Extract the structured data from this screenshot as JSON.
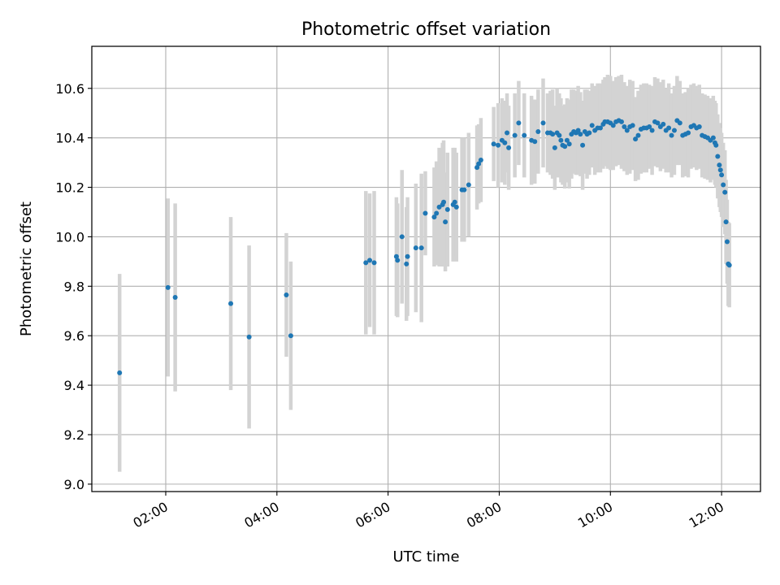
{
  "chart_data": {
    "type": "scatter",
    "title": "Photometric offset variation",
    "xlabel": "UTC time",
    "ylabel": "Photometric offset",
    "x_unit": "hours UTC",
    "xlim": [
      0.67,
      12.7
    ],
    "ylim": [
      8.97,
      10.77
    ],
    "x_ticks": [
      2,
      4,
      6,
      8,
      10,
      12
    ],
    "x_tick_labels": [
      "02:00",
      "04:00",
      "06:00",
      "08:00",
      "10:00",
      "12:00"
    ],
    "y_ticks": [
      9.0,
      9.2,
      9.4,
      9.6,
      9.8,
      10.0,
      10.2,
      10.4,
      10.6
    ],
    "y_tick_labels": [
      "9.0",
      "9.2",
      "9.4",
      "9.6",
      "9.8",
      "10.0",
      "10.2",
      "10.4",
      "10.6"
    ],
    "grid": true,
    "legend": "none",
    "colors": {
      "point": "#1f77b4",
      "errorbar": "#d3d3d3",
      "grid": "#b0b0b0"
    },
    "series": [
      {
        "values": [
          [
            1.17,
            9.45,
            0.4
          ],
          [
            2.04,
            9.795,
            0.36
          ],
          [
            2.17,
            9.755,
            0.38
          ],
          [
            3.17,
            9.73,
            0.35
          ],
          [
            3.5,
            9.595,
            0.37
          ],
          [
            4.17,
            9.765,
            0.25
          ],
          [
            4.25,
            9.6,
            0.3
          ],
          [
            5.6,
            9.895,
            0.29
          ],
          [
            5.67,
            9.905,
            0.27
          ],
          [
            5.75,
            9.895,
            0.29
          ],
          [
            6.15,
            9.92,
            0.24
          ],
          [
            6.17,
            9.905,
            0.23
          ],
          [
            6.25,
            10.0,
            0.27
          ],
          [
            6.33,
            9.89,
            0.23
          ],
          [
            6.35,
            9.92,
            0.24
          ],
          [
            6.5,
            9.955,
            0.26
          ],
          [
            6.6,
            9.955,
            0.3
          ],
          [
            6.67,
            10.095,
            0.17
          ],
          [
            6.83,
            10.08,
            0.2
          ],
          [
            6.87,
            10.095,
            0.21
          ],
          [
            6.92,
            10.12,
            0.24
          ],
          [
            6.98,
            10.13,
            0.25
          ],
          [
            7.0,
            10.14,
            0.25
          ],
          [
            7.03,
            10.06,
            0.2
          ],
          [
            7.07,
            10.11,
            0.23
          ],
          [
            7.17,
            10.13,
            0.23
          ],
          [
            7.2,
            10.14,
            0.22
          ],
          [
            7.23,
            10.12,
            0.22
          ],
          [
            7.33,
            10.19,
            0.21
          ],
          [
            7.37,
            10.19,
            0.21
          ],
          [
            7.45,
            10.21,
            0.21
          ],
          [
            7.6,
            10.28,
            0.17
          ],
          [
            7.63,
            10.295,
            0.16
          ],
          [
            7.67,
            10.31,
            0.17
          ],
          [
            7.9,
            10.375,
            0.15
          ],
          [
            7.98,
            10.37,
            0.17
          ],
          [
            8.05,
            10.39,
            0.17
          ],
          [
            8.1,
            10.38,
            0.17
          ],
          [
            8.14,
            10.42,
            0.16
          ],
          [
            8.17,
            10.36,
            0.17
          ],
          [
            8.28,
            10.41,
            0.17
          ],
          [
            8.35,
            10.46,
            0.17
          ],
          [
            8.45,
            10.41,
            0.17
          ],
          [
            8.58,
            10.39,
            0.18
          ],
          [
            8.64,
            10.385,
            0.17
          ],
          [
            8.7,
            10.425,
            0.17
          ],
          [
            8.79,
            10.46,
            0.18
          ],
          [
            8.87,
            10.42,
            0.16
          ],
          [
            8.92,
            10.42,
            0.17
          ],
          [
            8.96,
            10.415,
            0.18
          ],
          [
            9.0,
            10.36,
            0.17
          ],
          [
            9.04,
            10.42,
            0.18
          ],
          [
            9.08,
            10.41,
            0.17
          ],
          [
            9.11,
            10.39,
            0.17
          ],
          [
            9.14,
            10.37,
            0.16
          ],
          [
            9.18,
            10.365,
            0.17
          ],
          [
            9.22,
            10.39,
            0.17
          ],
          [
            9.26,
            10.375,
            0.18
          ],
          [
            9.3,
            10.415,
            0.18
          ],
          [
            9.34,
            10.425,
            0.17
          ],
          [
            9.38,
            10.42,
            0.17
          ],
          [
            9.42,
            10.43,
            0.18
          ],
          [
            9.46,
            10.415,
            0.17
          ],
          [
            9.5,
            10.37,
            0.18
          ],
          [
            9.54,
            10.425,
            0.17
          ],
          [
            9.58,
            10.415,
            0.18
          ],
          [
            9.62,
            10.42,
            0.17
          ],
          [
            9.67,
            10.45,
            0.17
          ],
          [
            9.72,
            10.43,
            0.18
          ],
          [
            9.77,
            10.44,
            0.18
          ],
          [
            9.82,
            10.44,
            0.18
          ],
          [
            9.87,
            10.455,
            0.18
          ],
          [
            9.9,
            10.465,
            0.18
          ],
          [
            9.95,
            10.465,
            0.19
          ],
          [
            10.0,
            10.46,
            0.19
          ],
          [
            10.05,
            10.45,
            0.18
          ],
          [
            10.1,
            10.465,
            0.18
          ],
          [
            10.15,
            10.47,
            0.18
          ],
          [
            10.2,
            10.465,
            0.19
          ],
          [
            10.25,
            10.445,
            0.18
          ],
          [
            10.3,
            10.43,
            0.18
          ],
          [
            10.35,
            10.445,
            0.19
          ],
          [
            10.4,
            10.45,
            0.18
          ],
          [
            10.45,
            10.395,
            0.17
          ],
          [
            10.5,
            10.41,
            0.18
          ],
          [
            10.55,
            10.435,
            0.18
          ],
          [
            10.6,
            10.44,
            0.18
          ],
          [
            10.65,
            10.44,
            0.18
          ],
          [
            10.7,
            10.445,
            0.17
          ],
          [
            10.75,
            10.43,
            0.18
          ],
          [
            10.8,
            10.465,
            0.18
          ],
          [
            10.85,
            10.46,
            0.18
          ],
          [
            10.9,
            10.445,
            0.18
          ],
          [
            10.95,
            10.455,
            0.18
          ],
          [
            11.0,
            10.43,
            0.17
          ],
          [
            11.05,
            10.44,
            0.18
          ],
          [
            11.1,
            10.41,
            0.17
          ],
          [
            11.15,
            10.43,
            0.18
          ],
          [
            11.2,
            10.47,
            0.18
          ],
          [
            11.25,
            10.46,
            0.17
          ],
          [
            11.3,
            10.41,
            0.17
          ],
          [
            11.35,
            10.415,
            0.17
          ],
          [
            11.4,
            10.42,
            0.18
          ],
          [
            11.45,
            10.445,
            0.17
          ],
          [
            11.5,
            10.45,
            0.17
          ],
          [
            11.55,
            10.44,
            0.17
          ],
          [
            11.6,
            10.445,
            0.17
          ],
          [
            11.65,
            10.41,
            0.17
          ],
          [
            11.7,
            10.405,
            0.17
          ],
          [
            11.75,
            10.4,
            0.17
          ],
          [
            11.8,
            10.39,
            0.17
          ],
          [
            11.85,
            10.4,
            0.17
          ],
          [
            11.88,
            10.38,
            0.17
          ],
          [
            11.9,
            10.37,
            0.17
          ],
          [
            11.93,
            10.325,
            0.17
          ],
          [
            11.96,
            10.29,
            0.17
          ],
          [
            11.98,
            10.27,
            0.17
          ],
          [
            12.0,
            10.25,
            0.17
          ],
          [
            12.03,
            10.21,
            0.17
          ],
          [
            12.06,
            10.18,
            0.17
          ],
          [
            12.08,
            10.06,
            0.17
          ],
          [
            12.1,
            9.98,
            0.17
          ],
          [
            12.12,
            9.89,
            0.17
          ],
          [
            12.14,
            9.885,
            0.17
          ]
        ]
      }
    ]
  }
}
